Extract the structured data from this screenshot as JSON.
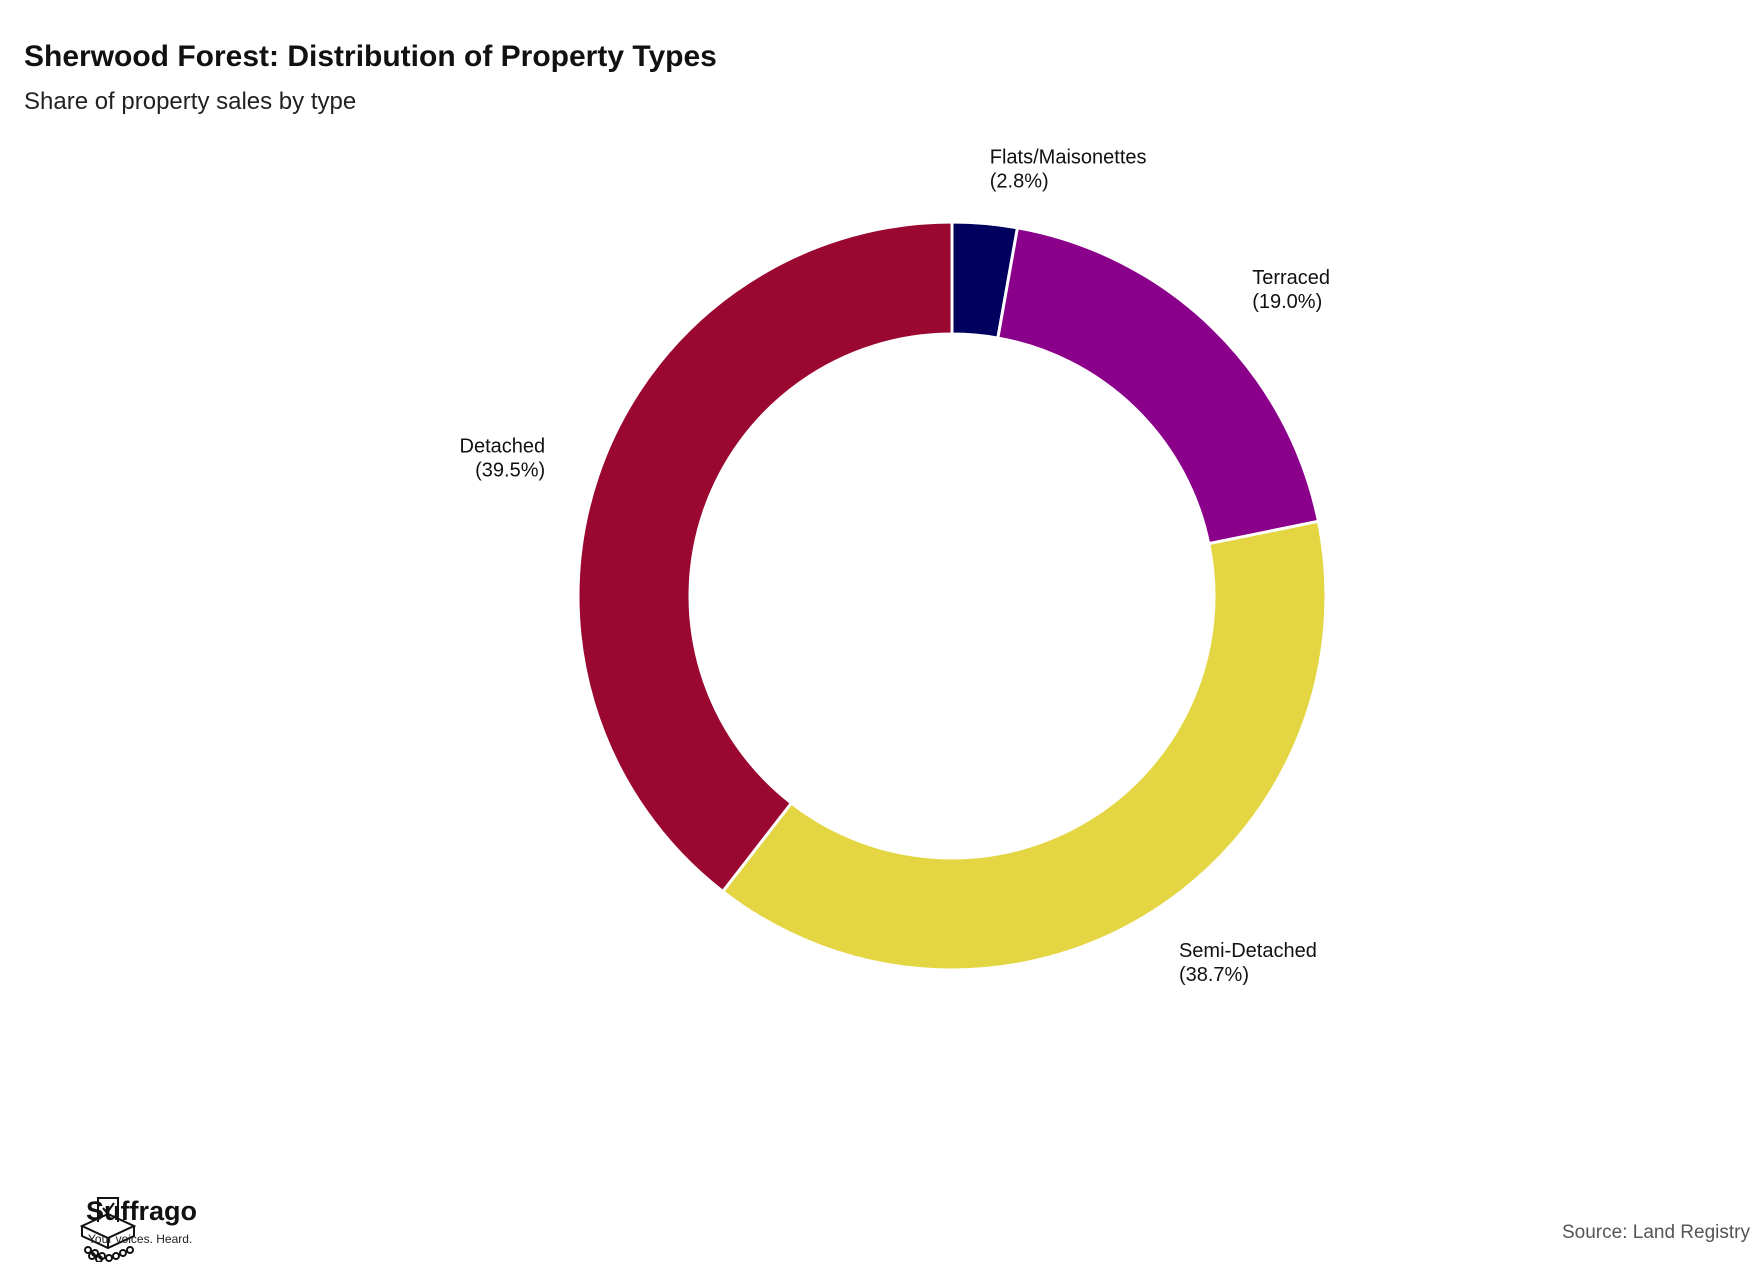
{
  "header": {
    "title": "Sherwood Forest: Distribution of Property Types",
    "subtitle": "Share of property sales by type"
  },
  "chart_data": {
    "type": "pie",
    "title": "Sherwood Forest: Distribution of Property Types",
    "subtitle": "Share of property sales by type",
    "donut": true,
    "slices": [
      {
        "label": "Flats/Maisonettes",
        "pct_label": "(2.8%)",
        "value": 2.8,
        "color": "#00005e"
      },
      {
        "label": "Terraced",
        "pct_label": "(19.0%)",
        "value": 19.0,
        "color": "#8b008b"
      },
      {
        "label": "Semi-Detached",
        "pct_label": "(38.7%)",
        "value": 38.7,
        "color": "#e3d642"
      },
      {
        "label": "Detached",
        "pct_label": "(39.5%)",
        "value": 39.5,
        "color": "#9a0730"
      }
    ]
  },
  "footer": {
    "brand": "Suffrago",
    "tagline": "Your voices. Heard.",
    "source": "Source: Land Registry",
    "logo_icon": "ballot-box-icon"
  }
}
